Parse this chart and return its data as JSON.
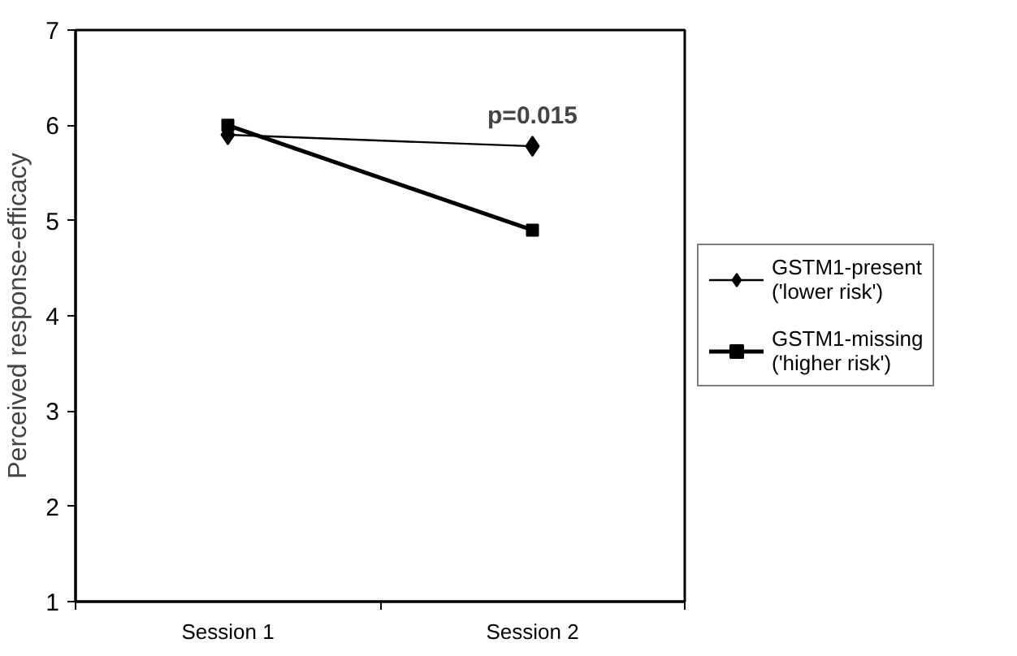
{
  "chart_data": {
    "type": "line",
    "ylabel": "Perceived response-efficacy",
    "categories": [
      "Session 1",
      "Session 2"
    ],
    "series": [
      {
        "name": "GSTM1-present ('lower risk')",
        "color": "#000000",
        "marker": "diamond",
        "values": [
          5.9,
          5.78
        ]
      },
      {
        "name": "GSTM1-missing ('higher risk')",
        "color": "#000000",
        "marker": "square",
        "values": [
          6.0,
          4.9
        ]
      }
    ],
    "ylim": [
      1,
      7
    ],
    "yticks": [
      1,
      2,
      3,
      4,
      5,
      6,
      7
    ],
    "grid": false,
    "legend": "right",
    "annotations": [
      "p=0.015"
    ]
  }
}
